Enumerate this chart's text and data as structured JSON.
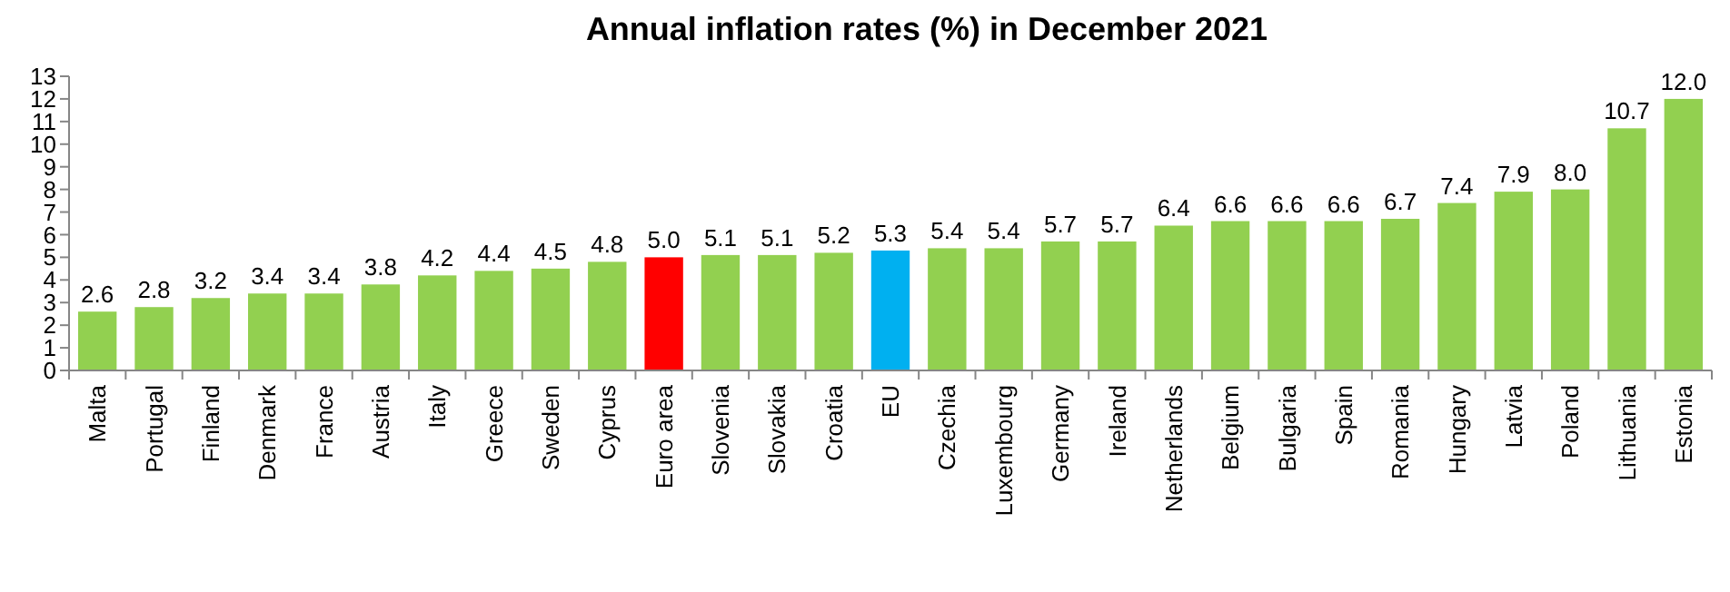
{
  "chart_data": {
    "type": "bar",
    "title": "Annual inflation rates (%) in December 2021",
    "categories": [
      "Malta",
      "Portugal",
      "Finland",
      "Denmark",
      "France",
      "Austria",
      "Italy",
      "Greece",
      "Sweden",
      "Cyprus",
      "Euro area",
      "Slovenia",
      "Slovakia",
      "Croatia",
      "EU",
      "Czechia",
      "Luxembourg",
      "Germany",
      "Ireland",
      "Netherlands",
      "Belgium",
      "Bulgaria",
      "Spain",
      "Romania",
      "Hungary",
      "Latvia",
      "Poland",
      "Lithuania",
      "Estonia"
    ],
    "values": [
      2.6,
      2.8,
      3.2,
      3.4,
      3.4,
      3.8,
      4.2,
      4.4,
      4.5,
      4.8,
      5.0,
      5.1,
      5.1,
      5.2,
      5.3,
      5.4,
      5.4,
      5.7,
      5.7,
      6.4,
      6.6,
      6.6,
      6.6,
      6.7,
      7.4,
      7.9,
      8.0,
      10.7,
      12.0
    ],
    "value_labels": [
      "2.6",
      "2.8",
      "3.2",
      "3.4",
      "3.4",
      "3.8",
      "4.2",
      "4.4",
      "4.5",
      "4.8",
      "5.0",
      "5.1",
      "5.1",
      "5.2",
      "5.3",
      "5.4",
      "5.4",
      "5.7",
      "5.7",
      "6.4",
      "6.6",
      "6.6",
      "6.6",
      "6.7",
      "7.4",
      "7.9",
      "8.0",
      "10.7",
      "12.0"
    ],
    "colors": [
      "#92d050",
      "#92d050",
      "#92d050",
      "#92d050",
      "#92d050",
      "#92d050",
      "#92d050",
      "#92d050",
      "#92d050",
      "#92d050",
      "#ff0000",
      "#92d050",
      "#92d050",
      "#92d050",
      "#00b0f0",
      "#92d050",
      "#92d050",
      "#92d050",
      "#92d050",
      "#92d050",
      "#92d050",
      "#92d050",
      "#92d050",
      "#92d050",
      "#92d050",
      "#92d050",
      "#92d050",
      "#92d050",
      "#92d050"
    ],
    "ylim": [
      0,
      13
    ],
    "yticks": [
      0,
      1,
      2,
      3,
      4,
      5,
      6,
      7,
      8,
      9,
      10,
      11,
      12,
      13
    ],
    "grid": false
  }
}
